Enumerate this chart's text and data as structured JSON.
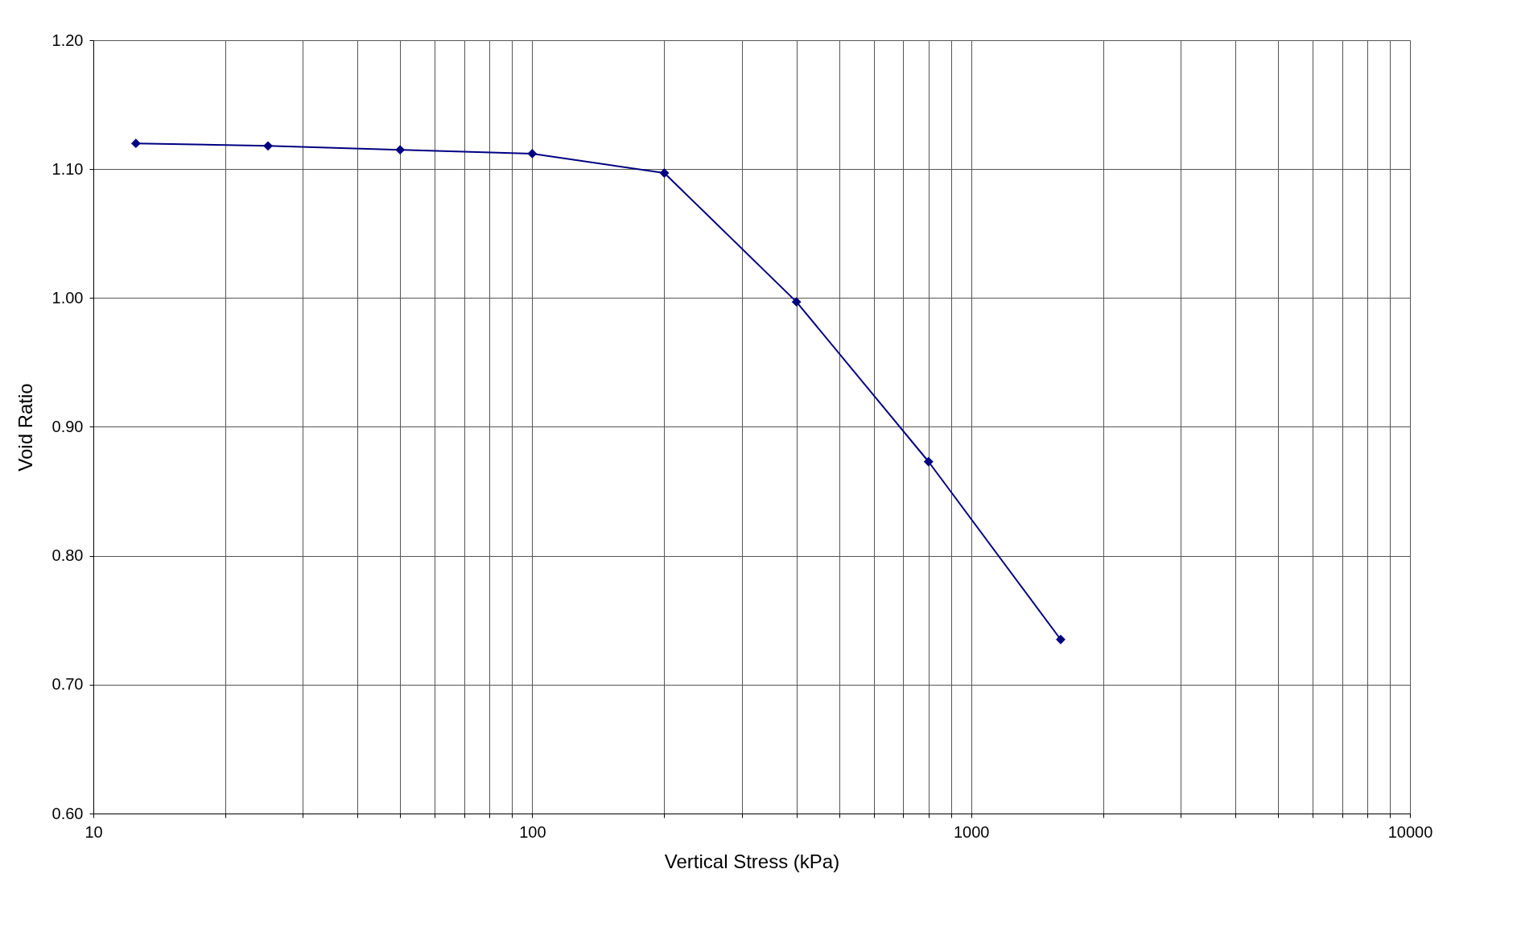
{
  "chart_data": {
    "type": "line",
    "xlabel": "Vertical Stress (kPa)",
    "ylabel": "Void Ratio",
    "x": [
      12.5,
      25,
      50,
      100,
      200,
      400,
      800,
      1600
    ],
    "series": [
      {
        "color": "#000080",
        "values": [
          1.12,
          1.118,
          1.115,
          1.112,
          1.097,
          0.997,
          0.873,
          0.735
        ]
      }
    ],
    "log": "x",
    "xlim": [
      10,
      10000
    ],
    "xticks": [
      10,
      {
        "value": 20,
        "label": null
      },
      {
        "value": 30,
        "label": null
      },
      {
        "value": 40,
        "label": null
      },
      {
        "value": 50,
        "label": null
      },
      {
        "value": 60,
        "label": null
      },
      {
        "value": 70,
        "label": null
      },
      {
        "value": 80,
        "label": null
      },
      {
        "value": 90,
        "label": null
      },
      100,
      {
        "value": 200,
        "label": null
      },
      {
        "value": 300,
        "label": null
      },
      {
        "value": 400,
        "label": null
      },
      {
        "value": 500,
        "label": null
      },
      {
        "value": 600,
        "label": null
      },
      {
        "value": 700,
        "label": null
      },
      {
        "value": 800,
        "label": null
      },
      {
        "value": 900,
        "label": null
      },
      1000,
      {
        "value": 2000,
        "label": null
      },
      {
        "value": 3000,
        "label": null
      },
      {
        "value": 4000,
        "label": null
      },
      {
        "value": 5000,
        "label": null
      },
      {
        "value": 6000,
        "label": null
      },
      {
        "value": 7000,
        "label": null
      },
      {
        "value": 8000,
        "label": null
      },
      {
        "value": 9000,
        "label": null
      },
      10000
    ],
    "ylim": [
      0.6,
      1.2
    ],
    "yticks": [
      {
        "value": 0.6,
        "label": "0.60"
      },
      {
        "value": 0.7,
        "label": "0.70"
      },
      {
        "value": 0.8,
        "label": "0.80"
      },
      {
        "value": 0.9,
        "label": "0.90"
      },
      {
        "value": 1.0,
        "label": "1.00"
      },
      {
        "value": 1.1,
        "label": "1.10"
      },
      {
        "value": 1.2,
        "label": "1.20"
      }
    ],
    "grid": true,
    "marker": "diamond",
    "line_style": "solid"
  }
}
